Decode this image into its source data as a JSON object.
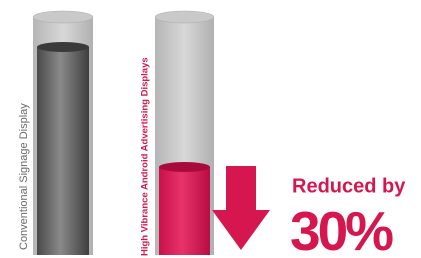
{
  "labels": {
    "conventional": "Conventional Signage Display",
    "high_vibrance": "High Vibrance Android Advertising Displays"
  },
  "callout": {
    "text": "Reduced by",
    "value": "30%"
  }
}
